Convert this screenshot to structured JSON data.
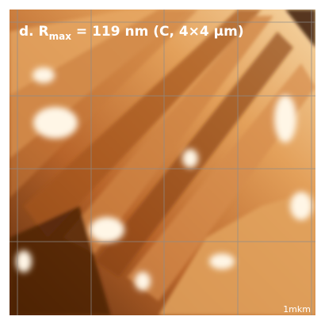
{
  "label": {
    "prefix": "d. R",
    "subscript": "max",
    "suffix": " = 119 nm (C, 4×4 µm)"
  },
  "scale_label": "1mkm"
}
